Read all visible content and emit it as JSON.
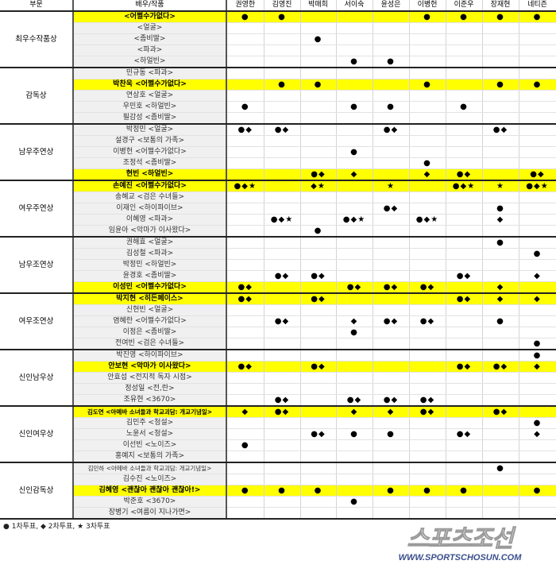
{
  "header": {
    "category": "부문",
    "nominee": "배우/작품",
    "judges": [
      "권영한",
      "김영진",
      "박매희",
      "서이숙",
      "윤성은",
      "이병헌",
      "이준우",
      "장재현",
      "네티즌"
    ]
  },
  "marker_colors": {
    "highlight": "#ffff00",
    "name_bg": "#f0f0f0"
  },
  "sections": [
    {
      "category": "최우수작품상",
      "rows": [
        {
          "nominee": "<어쩔수가없다>",
          "highlight": true,
          "votes": [
            "●",
            "●",
            "",
            "",
            "",
            "●",
            "●",
            "●",
            "●"
          ]
        },
        {
          "nominee": "<얼굴>",
          "votes": [
            "",
            "",
            "",
            "",
            "",
            "",
            "",
            "",
            ""
          ]
        },
        {
          "nominee": "<좀비딸>",
          "votes": [
            "",
            "",
            "●",
            "",
            "",
            "",
            "",
            "",
            ""
          ]
        },
        {
          "nominee": "<파과>",
          "votes": [
            "",
            "",
            "",
            "",
            "",
            "",
            "",
            "",
            ""
          ]
        },
        {
          "nominee": "<하얼빈>",
          "votes": [
            "",
            "",
            "",
            "●",
            "●",
            "",
            "",
            "",
            ""
          ]
        }
      ]
    },
    {
      "category": "감독상",
      "rows": [
        {
          "nominee": "민규동 <파과>",
          "votes": [
            "",
            "",
            "",
            "",
            "",
            "",
            "",
            "",
            ""
          ]
        },
        {
          "nominee": "박찬욱 <어쩔수가없다>",
          "highlight": true,
          "votes": [
            "",
            "●",
            "●",
            "",
            "",
            "●",
            "",
            "●",
            "●"
          ]
        },
        {
          "nominee": "연상호 <얼굴>",
          "votes": [
            "",
            "",
            "",
            "",
            "",
            "",
            "",
            "",
            ""
          ]
        },
        {
          "nominee": "우민호 <하얼빈>",
          "votes": [
            "●",
            "",
            "",
            "●",
            "●",
            "",
            "●",
            "",
            ""
          ]
        },
        {
          "nominee": "필감성 <좀비딸>",
          "votes": [
            "",
            "",
            "",
            "",
            "",
            "",
            "",
            "",
            ""
          ]
        }
      ]
    },
    {
      "category": "남우주연상",
      "rows": [
        {
          "nominee": "박정민 <얼굴>",
          "votes": [
            "●◆",
            "●◆",
            "",
            "",
            "●◆",
            "",
            "",
            "●◆",
            ""
          ]
        },
        {
          "nominee": "설경구 <보통의 가족>",
          "votes": [
            "",
            "",
            "",
            "",
            "",
            "",
            "",
            "",
            ""
          ]
        },
        {
          "nominee": "이병헌 <어쩔수가없다>",
          "votes": [
            "",
            "",
            "",
            "●",
            "",
            "",
            "",
            "",
            ""
          ]
        },
        {
          "nominee": "조정석 <좀비딸>",
          "votes": [
            "",
            "",
            "",
            "",
            "",
            "●",
            "",
            "",
            ""
          ]
        },
        {
          "nominee": "현빈 <하얼빈>",
          "highlight": true,
          "votes": [
            "",
            "",
            "●◆",
            "◆",
            "",
            "◆",
            "●◆",
            "",
            "●◆"
          ]
        }
      ]
    },
    {
      "category": "여우주연상",
      "rows": [
        {
          "nominee": "손예진 <어쩔수가없다>",
          "highlight": true,
          "votes": [
            "●◆★",
            "",
            "◆★",
            "",
            "★",
            "",
            "●◆★",
            "★",
            "●◆★"
          ]
        },
        {
          "nominee": "송혜교 <검은 수녀들>",
          "votes": [
            "",
            "",
            "",
            "",
            "",
            "",
            "",
            "",
            ""
          ]
        },
        {
          "nominee": "이재인 <하이파이브>",
          "votes": [
            "",
            "",
            "",
            "",
            "●◆",
            "",
            "",
            "●",
            ""
          ]
        },
        {
          "nominee": "이혜영 <파과>",
          "votes": [
            "",
            "●◆★",
            "",
            "●◆★",
            "",
            "●◆★",
            "",
            "◆",
            ""
          ]
        },
        {
          "nominee": "임윤아 <악마가 이사왔다>",
          "votes": [
            "",
            "",
            "●",
            "",
            "",
            "",
            "",
            "",
            ""
          ]
        }
      ]
    },
    {
      "category": "남우조연상",
      "rows": [
        {
          "nominee": "권해효 <얼굴>",
          "votes": [
            "",
            "",
            "",
            "",
            "",
            "",
            "",
            "●",
            ""
          ]
        },
        {
          "nominee": "김성철 <파과>",
          "votes": [
            "",
            "",
            "",
            "",
            "",
            "",
            "",
            "",
            "●"
          ]
        },
        {
          "nominee": "박정민 <하얼빈>",
          "votes": [
            "",
            "",
            "",
            "",
            "",
            "",
            "",
            "",
            ""
          ]
        },
        {
          "nominee": "윤경호 <좀비딸>",
          "votes": [
            "",
            "●◆",
            "●◆",
            "",
            "",
            "",
            "●◆",
            "",
            "◆"
          ]
        },
        {
          "nominee": "이성민 <어쩔수가없다>",
          "highlight": true,
          "votes": [
            "●◆",
            "",
            "",
            "●◆",
            "●◆",
            "●◆",
            "",
            "◆",
            ""
          ]
        }
      ]
    },
    {
      "category": "여우조연상",
      "rows": [
        {
          "nominee": "박지현 <히든페이스>",
          "highlight": true,
          "votes": [
            "●◆",
            "",
            "●◆",
            "",
            "",
            "",
            "●◆",
            "◆",
            "◆"
          ]
        },
        {
          "nominee": "신현빈 <얼굴>",
          "votes": [
            "",
            "",
            "",
            "",
            "",
            "",
            "",
            "",
            ""
          ]
        },
        {
          "nominee": "염혜란 <어쩔수가없다>",
          "votes": [
            "",
            "●◆",
            "",
            "◆",
            "●◆",
            "●◆",
            "",
            "●",
            ""
          ]
        },
        {
          "nominee": "이정은 <좀비딸>",
          "votes": [
            "",
            "",
            "",
            "●",
            "",
            "",
            "",
            "",
            ""
          ]
        },
        {
          "nominee": "전여빈 <검은 수녀들>",
          "votes": [
            "",
            "",
            "",
            "",
            "",
            "",
            "",
            "",
            "●"
          ]
        }
      ]
    },
    {
      "category": "신인남우상",
      "rows": [
        {
          "nominee": "박진영 <하이파이브>",
          "votes": [
            "",
            "",
            "",
            "",
            "",
            "",
            "",
            "",
            "●"
          ]
        },
        {
          "nominee": "안보현 <악마가 이사왔다>",
          "highlight": true,
          "votes": [
            "●◆",
            "",
            "●◆",
            "",
            "",
            "",
            "●◆",
            "●◆",
            "◆"
          ]
        },
        {
          "nominee": "안효섭 <전지적 독자 시점>",
          "votes": [
            "",
            "",
            "",
            "",
            "",
            "",
            "",
            "",
            ""
          ]
        },
        {
          "nominee": "정성일 <전,란>",
          "votes": [
            "",
            "",
            "",
            "",
            "",
            "",
            "",
            "",
            ""
          ]
        },
        {
          "nominee": "조유현 <3670>",
          "votes": [
            "",
            "●◆",
            "",
            "●◆",
            "●◆",
            "●◆",
            "",
            "",
            ""
          ]
        }
      ]
    },
    {
      "category": "신인여우상",
      "rows": [
        {
          "nominee": "김도연 <아메바 소녀들과 학교괴담: 개교기념일>",
          "highlight": true,
          "small": true,
          "votes": [
            "◆",
            "●◆",
            "",
            "◆",
            "◆",
            "●◆",
            "",
            "●◆",
            ""
          ]
        },
        {
          "nominee": "김민주 <청설>",
          "votes": [
            "",
            "",
            "",
            "",
            "",
            "",
            "",
            "",
            "●"
          ]
        },
        {
          "nominee": "노윤서 <청설>",
          "votes": [
            "",
            "",
            "●◆",
            "●",
            "●",
            "",
            "●◆",
            "",
            "◆"
          ]
        },
        {
          "nominee": "이선빈 <노이즈>",
          "votes": [
            "●",
            "",
            "",
            "",
            "",
            "",
            "",
            "",
            ""
          ]
        },
        {
          "nominee": "홍예지 <보통의 가족>",
          "votes": [
            "",
            "",
            "",
            "",
            "",
            "",
            "",
            "",
            ""
          ]
        }
      ]
    },
    {
      "category": "신인감독상",
      "rows": [
        {
          "nominee": "김민하 <아메바 소녀들과 학교괴담: 개교기념일>",
          "small": true,
          "votes": [
            "",
            "",
            "",
            "",
            "",
            "",
            "",
            "●",
            ""
          ]
        },
        {
          "nominee": "김수진 <노이즈>",
          "votes": [
            "",
            "",
            "",
            "",
            "",
            "",
            "",
            "",
            ""
          ]
        },
        {
          "nominee": "김혜영 <괜찮아 괜찮아 괜찮아!>",
          "highlight": true,
          "votes": [
            "●",
            "●",
            "●",
            "",
            "●",
            "●",
            "●",
            "",
            "●"
          ]
        },
        {
          "nominee": "박준호 <3670>",
          "votes": [
            "",
            "",
            "",
            "●",
            "",
            "",
            "",
            "",
            ""
          ]
        },
        {
          "nominee": "장병기 <여름이 지나가면>",
          "votes": [
            "",
            "",
            "",
            "",
            "",
            "",
            "",
            "",
            ""
          ]
        }
      ]
    }
  ],
  "legend": "● 1차투표,  ◆ 2차투표,  ★ 3차투표",
  "logo": {
    "wordmark": "스포츠조선",
    "url": "WWW.SPORTSCHOSUN.COM"
  }
}
